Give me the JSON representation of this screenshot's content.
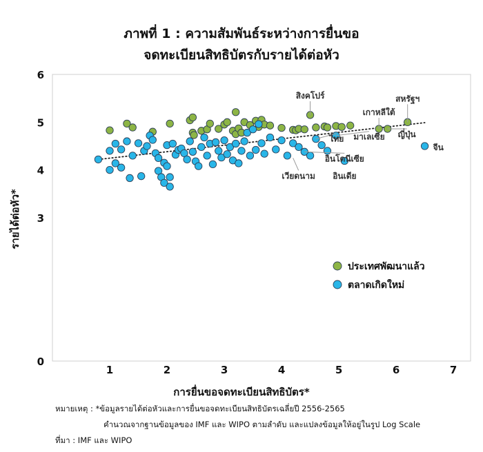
{
  "title_lines": [
    "ภาพที่ 1 : ความสัมพันธ์ระหว่างการยื่นขอ",
    "จดทะเบียนสิทธิบัตรกับรายได้ต่อหัว"
  ],
  "notes": [
    "หมายเหตุ : *ข้อมูลรายได้ต่อหัวและการยื่นขอจดทะเบียนสิทธิบัตรเฉลี่ยปี 2556-2565",
    "คำนวณจากฐานข้อมูลของ IMF และ WIPO ตามลำดับ และแปลงข้อมูลให้อยู่ในรูป Log Scale",
    "ที่มา : IMF และ WIPO"
  ],
  "chart_data": {
    "type": "scatter",
    "xlabel": "การยื่นขอจดทะเบียนสิทธิบัตร*",
    "ylabel": "รายได้ต่อหัว*",
    "xlim": [
      0,
      7.3
    ],
    "ylim": [
      0,
      6
    ],
    "xticks": [
      1,
      2,
      3,
      4,
      5,
      6,
      7
    ],
    "yticks": [
      0,
      3,
      4,
      5,
      6
    ],
    "grid": false,
    "legend_position": "bottom-right",
    "trendline": {
      "style": "dotted",
      "x": [
        0.8,
        6.5
      ],
      "y": [
        4.22,
        4.99
      ]
    },
    "series": [
      {
        "name": "ประเทศพัฒนาแล้ว",
        "color": "#8db545",
        "points": [
          [
            1.0,
            4.83
          ],
          [
            1.3,
            4.97
          ],
          [
            1.4,
            4.89
          ],
          [
            1.75,
            4.8
          ],
          [
            2.05,
            4.97
          ],
          [
            2.4,
            5.04
          ],
          [
            2.45,
            4.78
          ],
          [
            2.47,
            4.73
          ],
          [
            2.45,
            5.1
          ],
          [
            2.6,
            4.82
          ],
          [
            2.7,
            4.85
          ],
          [
            2.75,
            4.97
          ],
          [
            2.9,
            4.86
          ],
          [
            3.0,
            4.95
          ],
          [
            3.05,
            5.0
          ],
          [
            3.15,
            4.82
          ],
          [
            3.2,
            5.21
          ],
          [
            3.2,
            4.75
          ],
          [
            3.25,
            4.87
          ],
          [
            3.3,
            4.78
          ],
          [
            3.35,
            5.0
          ],
          [
            3.45,
            4.94
          ],
          [
            3.55,
            5.03
          ],
          [
            3.6,
            4.9
          ],
          [
            3.65,
            5.05
          ],
          [
            3.7,
            4.95
          ],
          [
            3.8,
            4.93
          ],
          [
            4.0,
            4.88
          ],
          [
            4.2,
            4.84
          ],
          [
            4.25,
            4.83
          ],
          [
            4.3,
            4.86
          ],
          [
            4.4,
            4.85
          ],
          [
            4.5,
            5.15
          ],
          [
            4.6,
            4.89
          ],
          [
            4.75,
            4.91
          ],
          [
            4.8,
            4.89
          ],
          [
            4.95,
            4.92
          ],
          [
            5.05,
            4.9
          ],
          [
            5.2,
            4.93
          ],
          [
            5.7,
            4.86
          ],
          [
            5.85,
            4.86
          ],
          [
            6.2,
            5.0
          ]
        ]
      },
      {
        "name": "ตลาดเกิดใหม่",
        "color": "#29b6e8",
        "points": [
          [
            0.8,
            4.22
          ],
          [
            1.0,
            4.0
          ],
          [
            1.0,
            4.4
          ],
          [
            1.1,
            4.55
          ],
          [
            1.1,
            4.14
          ],
          [
            1.2,
            4.43
          ],
          [
            1.2,
            4.05
          ],
          [
            1.3,
            4.6
          ],
          [
            1.35,
            3.83
          ],
          [
            1.4,
            4.3
          ],
          [
            1.5,
            4.56
          ],
          [
            1.55,
            3.87
          ],
          [
            1.6,
            4.4
          ],
          [
            1.65,
            4.5
          ],
          [
            1.7,
            4.72
          ],
          [
            1.75,
            4.63
          ],
          [
            1.8,
            4.35
          ],
          [
            1.85,
            3.98
          ],
          [
            1.85,
            4.25
          ],
          [
            1.9,
            3.85
          ],
          [
            1.95,
            4.15
          ],
          [
            1.95,
            3.73
          ],
          [
            2.0,
            4.52
          ],
          [
            2.0,
            4.08
          ],
          [
            2.05,
            3.85
          ],
          [
            2.05,
            3.65
          ],
          [
            2.1,
            4.55
          ],
          [
            2.15,
            4.32
          ],
          [
            2.2,
            4.42
          ],
          [
            2.25,
            4.45
          ],
          [
            2.3,
            4.35
          ],
          [
            2.35,
            4.22
          ],
          [
            2.4,
            4.6
          ],
          [
            2.45,
            4.38
          ],
          [
            2.5,
            4.18
          ],
          [
            2.55,
            4.08
          ],
          [
            2.6,
            4.48
          ],
          [
            2.65,
            4.68
          ],
          [
            2.7,
            4.3
          ],
          [
            2.75,
            4.55
          ],
          [
            2.8,
            4.12
          ],
          [
            2.85,
            4.58
          ],
          [
            2.9,
            4.4
          ],
          [
            2.95,
            4.26
          ],
          [
            3.0,
            4.62
          ],
          [
            3.05,
            4.33
          ],
          [
            3.1,
            4.48
          ],
          [
            3.15,
            4.2
          ],
          [
            3.2,
            4.55
          ],
          [
            3.25,
            4.14
          ],
          [
            3.3,
            4.4
          ],
          [
            3.35,
            4.6
          ],
          [
            3.4,
            4.78
          ],
          [
            3.45,
            4.3
          ],
          [
            3.5,
            4.85
          ],
          [
            3.55,
            4.42
          ],
          [
            3.6,
            4.96
          ],
          [
            3.65,
            4.56
          ],
          [
            3.7,
            4.34
          ],
          [
            3.8,
            4.68
          ],
          [
            3.9,
            4.43
          ],
          [
            4.0,
            4.62
          ],
          [
            4.1,
            4.3
          ],
          [
            4.2,
            4.56
          ],
          [
            4.3,
            4.48
          ],
          [
            4.4,
            4.38
          ],
          [
            4.5,
            4.3
          ],
          [
            4.6,
            4.65
          ],
          [
            4.7,
            4.52
          ],
          [
            4.8,
            4.4
          ],
          [
            4.95,
            4.72
          ],
          [
            5.1,
            4.19
          ],
          [
            6.5,
            4.5
          ]
        ]
      }
    ],
    "annotations": [
      {
        "text": "สิงคโปร์",
        "x": 4.5,
        "y": 5.15
      },
      {
        "text": "สหรัฐฯ",
        "x": 6.2,
        "y": 5.0
      },
      {
        "text": "เกาหลีใต้",
        "x": 5.7,
        "y": 4.86
      },
      {
        "text": "ญี่ปุ่น",
        "x": 5.85,
        "y": 4.86
      },
      {
        "text": "มาเลเซีย",
        "x": 4.95,
        "y": 4.72
      },
      {
        "text": "ไทย",
        "x": 4.6,
        "y": 4.65
      },
      {
        "text": "อินโดนีเซีย",
        "x": 4.4,
        "y": 4.38
      },
      {
        "text": "เวียดนาม",
        "x": 4.2,
        "y": 4.25
      },
      {
        "text": "อินเดีย",
        "x": 5.1,
        "y": 4.19
      },
      {
        "text": "จีน",
        "x": 6.5,
        "y": 4.5
      }
    ]
  }
}
